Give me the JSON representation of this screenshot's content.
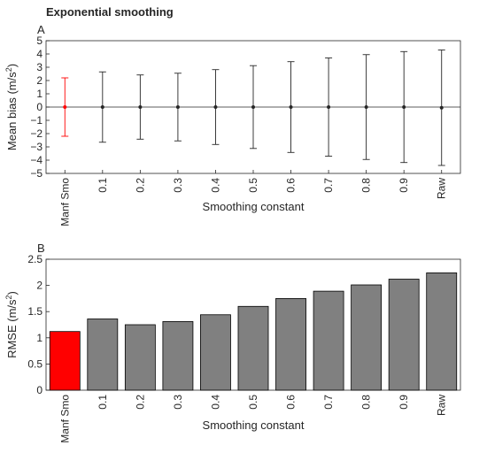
{
  "figure_title": "Exponential smoothing",
  "colors": {
    "highlight": "#ff0000",
    "bar_gray": "#808080",
    "errorbar_black": "#262626",
    "axis": "#262626",
    "zero_line": "#262626"
  },
  "chart_data": [
    {
      "panel": "A",
      "type": "errorbar",
      "categories": [
        "Manf Smo",
        "0.1",
        "0.2",
        "0.3",
        "0.4",
        "0.5",
        "0.6",
        "0.7",
        "0.8",
        "0.9",
        "Raw"
      ],
      "mean": [
        0,
        0,
        0,
        0,
        0,
        0,
        0,
        0,
        0,
        0,
        -0.05
      ],
      "error": [
        2.2,
        2.65,
        2.42,
        2.55,
        2.82,
        3.12,
        3.42,
        3.7,
        3.95,
        4.18,
        4.35
      ],
      "highlight_index": 0,
      "xlabel": "Smoothing constant",
      "ylabel": "Mean bias (m/s",
      "ylabel_sup": "2",
      "ylabel_end": ")",
      "ylim": [
        -5,
        5
      ],
      "yticks": [
        -5,
        -4,
        -3,
        -2,
        -1,
        0,
        1,
        2,
        3,
        4,
        5
      ],
      "ytick_labels": [
        "−5",
        "−4",
        "−3",
        "−2",
        "−1",
        "0",
        "1",
        "2",
        "3",
        "4",
        "5"
      ],
      "zero_line": true,
      "grid": false
    },
    {
      "panel": "B",
      "type": "bar",
      "categories": [
        "Manf Smo",
        "0.1",
        "0.2",
        "0.3",
        "0.4",
        "0.5",
        "0.6",
        "0.7",
        "0.8",
        "0.9",
        "Raw"
      ],
      "values": [
        1.12,
        1.36,
        1.25,
        1.31,
        1.44,
        1.6,
        1.75,
        1.89,
        2.01,
        2.12,
        2.24
      ],
      "highlight_index": 0,
      "xlabel": "Smoothing constant",
      "ylabel": "RMSE (m/s",
      "ylabel_sup": "2",
      "ylabel_end": ")",
      "ylim": [
        0,
        2.5
      ],
      "yticks": [
        0,
        0.5,
        1,
        1.5,
        2,
        2.5
      ],
      "ytick_labels": [
        "0",
        "0.5",
        "1",
        "1.5",
        "2",
        "2.5"
      ],
      "grid": false
    }
  ]
}
